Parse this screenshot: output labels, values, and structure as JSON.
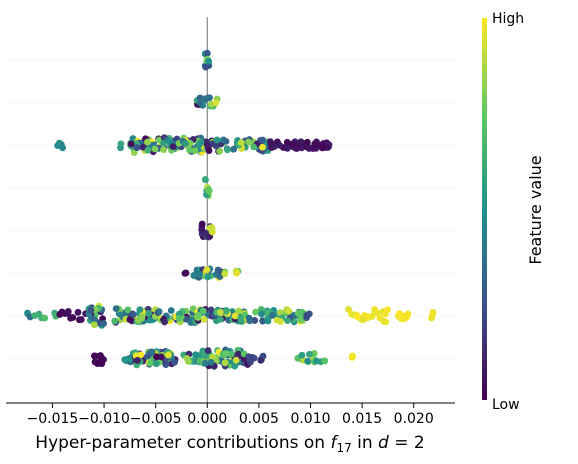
{
  "chart_data": {
    "type": "scatter",
    "subtype": "beeswarm",
    "xlabel": "Hyper-parameter contributions on f₁₇ in d = 2",
    "xlabel_parts": {
      "prefix": "Hyper-parameter contributions on ",
      "f": "f",
      "sub": "17",
      "middle": " in ",
      "d": "d",
      "suffix": " = 2"
    },
    "xlim": [
      -0.0195,
      0.024
    ],
    "xticks": [
      -0.015,
      -0.01,
      -0.005,
      0.0,
      0.005,
      0.01,
      0.015,
      0.02
    ],
    "xtick_labels": [
      "−0.015",
      "−0.010",
      "−0.005",
      "0.000",
      "0.005",
      "0.010",
      "0.015",
      "0.020"
    ],
    "rows": 8,
    "grid": "horizontal dotted",
    "zero_line": true,
    "colorbar": {
      "title": "Feature value",
      "high_label": "High",
      "low_label": "Low",
      "colormap": "viridis",
      "colors": [
        "#440154",
        "#3b528b",
        "#21918c",
        "#5ec962",
        "#fde725"
      ]
    },
    "series": [
      {
        "row": 1,
        "ranges": [
          {
            "x0": -0.0002,
            "x1": 0.0002,
            "vmin": 0.2,
            "vmax": 0.8,
            "n": 12,
            "spread": 0.6
          }
        ]
      },
      {
        "row": 2,
        "ranges": [
          {
            "x0": -0.0012,
            "x1": 0.0008,
            "vmin": 0.0,
            "vmax": 0.7,
            "n": 14,
            "spread": 0.35
          },
          {
            "x0": 0.0003,
            "x1": 0.001,
            "vmin": 0.8,
            "vmax": 1.0,
            "n": 3,
            "spread": 0.3
          }
        ]
      },
      {
        "row": 3,
        "ranges": [
          {
            "x0": -0.0145,
            "x1": -0.014,
            "vmin": 0.45,
            "vmax": 0.55,
            "n": 4,
            "spread": 0.2
          },
          {
            "x0": -0.0085,
            "x1": -0.007,
            "vmin": 0.5,
            "vmax": 0.7,
            "n": 5,
            "spread": 0.2
          },
          {
            "x0": -0.0075,
            "x1": -0.0005,
            "vmin": 0.0,
            "vmax": 1.0,
            "n": 90,
            "spread": 0.55
          },
          {
            "x0": -0.001,
            "x1": 0.006,
            "vmin": 0.0,
            "vmax": 1.0,
            "n": 70,
            "spread": 0.45
          },
          {
            "x0": 0.006,
            "x1": 0.012,
            "vmin": 0.0,
            "vmax": 0.1,
            "n": 60,
            "spread": 0.25
          }
        ]
      },
      {
        "row": 4,
        "ranges": [
          {
            "x0": -0.0002,
            "x1": 0.0002,
            "vmin": 0.5,
            "vmax": 0.9,
            "n": 10,
            "spread": 0.6
          }
        ]
      },
      {
        "row": 5,
        "ranges": [
          {
            "x0": -0.0006,
            "x1": 0.0003,
            "vmin": 0.0,
            "vmax": 0.25,
            "n": 14,
            "spread": 0.5
          },
          {
            "x0": 0.0001,
            "x1": 0.0007,
            "vmin": 0.85,
            "vmax": 1.0,
            "n": 4,
            "spread": 0.3
          }
        ]
      },
      {
        "row": 6,
        "ranges": [
          {
            "x0": -0.0025,
            "x1": -0.002,
            "vmin": 0.0,
            "vmax": 0.1,
            "n": 3,
            "spread": 0.15
          },
          {
            "x0": -0.0015,
            "x1": 0.0015,
            "vmin": 0.0,
            "vmax": 1.0,
            "n": 25,
            "spread": 0.35
          },
          {
            "x0": 0.0015,
            "x1": 0.003,
            "vmin": 0.7,
            "vmax": 1.0,
            "n": 6,
            "spread": 0.15
          }
        ]
      },
      {
        "row": 7,
        "ranges": [
          {
            "x0": -0.0175,
            "x1": -0.017,
            "vmin": 0.3,
            "vmax": 0.5,
            "n": 3,
            "spread": 0.3
          },
          {
            "x0": -0.017,
            "x1": -0.014,
            "vmin": 0.6,
            "vmax": 0.7,
            "n": 6,
            "spread": 0.2
          },
          {
            "x0": -0.0145,
            "x1": -0.0115,
            "vmin": 0.0,
            "vmax": 0.05,
            "n": 12,
            "spread": 0.3
          },
          {
            "x0": -0.0115,
            "x1": -0.0098,
            "vmin": 0.0,
            "vmax": 1.0,
            "n": 22,
            "spread": 0.7
          },
          {
            "x0": -0.009,
            "x1": -0.001,
            "vmin": 0.0,
            "vmax": 1.0,
            "n": 80,
            "spread": 0.5
          },
          {
            "x0": -0.001,
            "x1": 0.004,
            "vmin": 0.0,
            "vmax": 1.0,
            "n": 60,
            "spread": 0.45
          },
          {
            "x0": 0.004,
            "x1": 0.0095,
            "vmin": 0.2,
            "vmax": 1.0,
            "n": 45,
            "spread": 0.45
          },
          {
            "x0": 0.0095,
            "x1": 0.01,
            "vmin": 0.2,
            "vmax": 0.3,
            "n": 3,
            "spread": 0.2
          },
          {
            "x0": 0.0135,
            "x1": 0.0175,
            "vmin": 0.95,
            "vmax": 1.0,
            "n": 22,
            "spread": 0.45
          },
          {
            "x0": 0.0185,
            "x1": 0.0195,
            "vmin": 0.95,
            "vmax": 1.0,
            "n": 8,
            "spread": 0.25
          },
          {
            "x0": 0.0215,
            "x1": 0.022,
            "vmin": 0.95,
            "vmax": 1.0,
            "n": 3,
            "spread": 0.3
          }
        ]
      },
      {
        "row": 8,
        "ranges": [
          {
            "x0": -0.011,
            "x1": -0.01,
            "vmin": 0.0,
            "vmax": 0.05,
            "n": 12,
            "spread": 0.4
          },
          {
            "x0": -0.008,
            "x1": -0.006,
            "vmin": 0.2,
            "vmax": 0.6,
            "n": 12,
            "spread": 0.35
          },
          {
            "x0": -0.007,
            "x1": -0.003,
            "vmin": 0.0,
            "vmax": 1.0,
            "n": 55,
            "spread": 0.5
          },
          {
            "x0": -0.0025,
            "x1": -0.0005,
            "vmin": 0.0,
            "vmax": 0.9,
            "n": 20,
            "spread": 0.3
          },
          {
            "x0": -0.0005,
            "x1": 0.004,
            "vmin": 0.0,
            "vmax": 1.0,
            "n": 65,
            "spread": 0.6
          },
          {
            "x0": 0.004,
            "x1": 0.0055,
            "vmin": 0.0,
            "vmax": 0.3,
            "n": 8,
            "spread": 0.3
          },
          {
            "x0": 0.0085,
            "x1": 0.0115,
            "vmin": 0.4,
            "vmax": 0.9,
            "n": 14,
            "spread": 0.35
          },
          {
            "x0": 0.014,
            "x1": 0.0142,
            "vmin": 0.95,
            "vmax": 1.0,
            "n": 3,
            "spread": 0.35
          }
        ]
      }
    ]
  }
}
